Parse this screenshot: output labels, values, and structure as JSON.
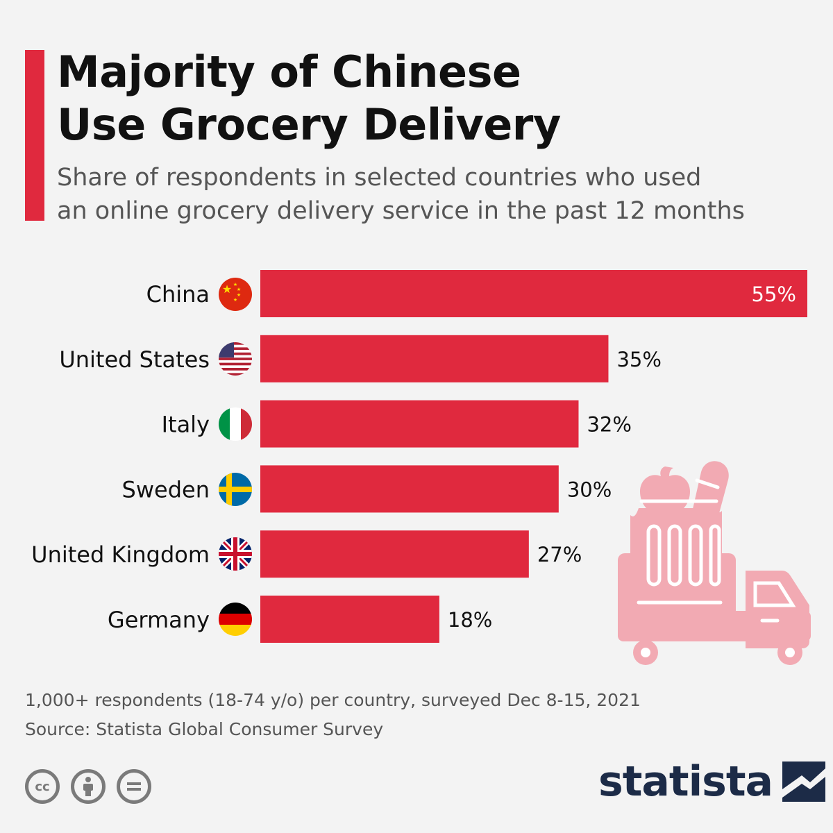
{
  "header": {
    "title_line1": "Majority of Chinese",
    "title_line2": "Use Grocery Delivery",
    "subtitle_line1": "Share of respondents in selected countries who used",
    "subtitle_line2": "an online grocery delivery service in the past 12 months"
  },
  "chart_data": {
    "type": "bar",
    "orientation": "horizontal",
    "title": "Majority of Chinese Use Grocery Delivery",
    "categories": [
      "China",
      "United States",
      "Italy",
      "Sweden",
      "United Kingdom",
      "Germany"
    ],
    "values": [
      55,
      35,
      32,
      30,
      27,
      18
    ],
    "value_labels": [
      "55%",
      "35%",
      "32%",
      "30%",
      "27%",
      "18%"
    ],
    "flags": [
      "china-flag-icon",
      "usa-flag-icon",
      "italy-flag-icon",
      "sweden-flag-icon",
      "uk-flag-icon",
      "germany-flag-icon"
    ],
    "unit": "%",
    "xlim": [
      0,
      55
    ],
    "bar_color": "#e0293e",
    "grid": false
  },
  "footer": {
    "note": "1,000+ respondents (18-74 y/o) per country, surveyed Dec 8-15, 2021",
    "source": "Source: Statista Global Consumer Survey",
    "brand": "statista",
    "license_icons": [
      "cc-icon",
      "attribution-icon",
      "no-derivatives-icon"
    ]
  },
  "colors": {
    "accent": "#e0293e",
    "background": "#f3f3f3",
    "brand_navy": "#1c2b47",
    "illustration_pink": "#f2aab3"
  }
}
